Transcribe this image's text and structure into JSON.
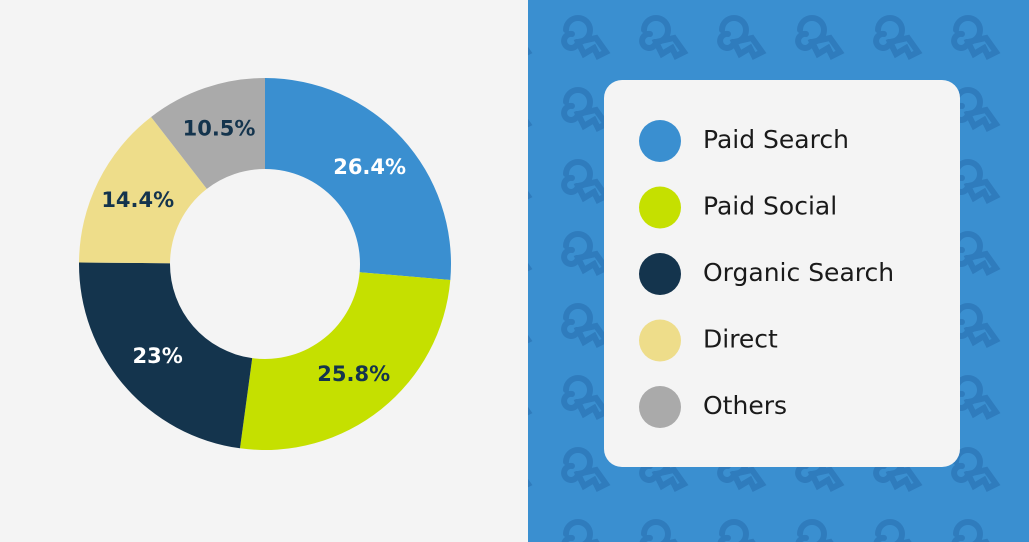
{
  "chart_data": {
    "type": "donut",
    "categories": [
      "Paid Search",
      "Paid Social",
      "Organic Search",
      "Direct",
      "Others"
    ],
    "values": [
      26.4,
      25.8,
      23,
      14.4,
      10.5
    ],
    "value_labels": [
      "26.4%",
      "25.8%",
      "23%",
      "14.4%",
      "10.5%"
    ],
    "colors": [
      "#3a8fd0",
      "#c5e000",
      "#14344d",
      "#eedd8a",
      "#aaaaaa"
    ]
  }
}
